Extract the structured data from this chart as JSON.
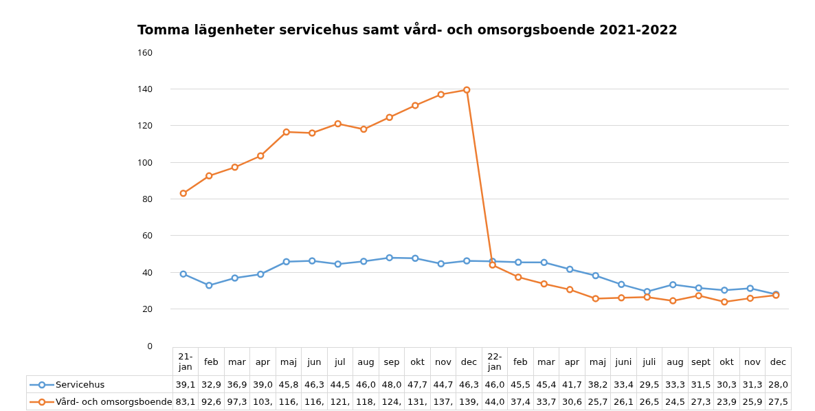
{
  "chart_data": {
    "type": "line",
    "title": "Tomma lägenheter servicehus samt vård- och omsorgsboende 2021-2022",
    "categories": [
      "21-jan",
      "feb",
      "mar",
      "apr",
      "maj",
      "jun",
      "jul",
      "aug",
      "sep",
      "okt",
      "nov",
      "dec",
      "22-jan",
      "feb",
      "mar",
      "apr",
      "maj",
      "juni",
      "juli",
      "aug",
      "sept",
      "okt",
      "nov",
      "dec"
    ],
    "series": [
      {
        "name": "Servicehus",
        "color": "#5b9bd5",
        "values": [
          39.1,
          32.9,
          36.9,
          39.0,
          45.8,
          46.3,
          44.5,
          46.0,
          48.0,
          47.7,
          44.7,
          46.3,
          46.0,
          45.5,
          45.4,
          41.7,
          38.2,
          33.4,
          29.5,
          33.3,
          31.5,
          30.3,
          31.3,
          28.0
        ],
        "value_labels": [
          "39,1",
          "32,9",
          "36,9",
          "39,0",
          "45,8",
          "46,3",
          "44,5",
          "46,0",
          "48,0",
          "47,7",
          "44,7",
          "46,3",
          "46,0",
          "45,5",
          "45,4",
          "41,7",
          "38,2",
          "33,4",
          "29,5",
          "33,3",
          "31,5",
          "30,3",
          "31,3",
          "28,0"
        ]
      },
      {
        "name": "Vård- och omsorgsboende",
        "color": "#ed7d31",
        "values": [
          83.1,
          92.6,
          97.3,
          103.5,
          116.5,
          116,
          121,
          118,
          124.5,
          131,
          137,
          139.5,
          44.0,
          37.4,
          33.7,
          30.6,
          25.7,
          26.1,
          26.5,
          24.5,
          27.3,
          23.9,
          25.9,
          27.5
        ],
        "value_labels": [
          "83,1",
          "92,6",
          "97,3",
          "103,",
          "116,",
          "116,",
          "121,",
          "118,",
          "124,",
          "131,",
          "137,",
          "139,",
          "44,0",
          "37,4",
          "33,7",
          "30,6",
          "25,7",
          "26,1",
          "26,5",
          "24,5",
          "27,3",
          "23,9",
          "25,9",
          "27,5"
        ]
      }
    ],
    "ylim": [
      0,
      160
    ],
    "yticks": [
      0,
      20,
      40,
      60,
      80,
      100,
      120,
      140,
      160
    ],
    "grid": "y",
    "legend": "bottom",
    "marker": "circle",
    "line_style": "solid",
    "tick_labels": "y"
  }
}
